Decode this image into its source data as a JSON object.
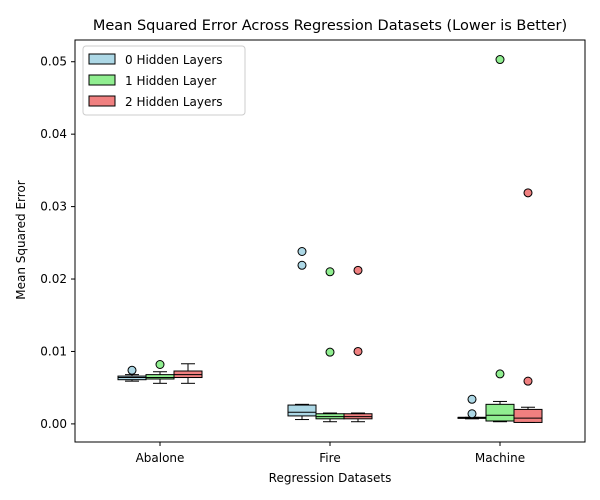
{
  "chart_data": {
    "type": "box",
    "title": "Mean Squared Error Across Regression Datasets (Lower is Better)",
    "xlabel": "Regression Datasets",
    "ylabel": "Mean Squared Error",
    "categories": [
      "Abalone",
      "Fire",
      "Machine"
    ],
    "ylim": [
      -0.0025,
      0.053
    ],
    "yticks": [
      0.0,
      0.01,
      0.02,
      0.03,
      0.04,
      0.05
    ],
    "ytick_labels": [
      "0.00",
      "0.01",
      "0.02",
      "0.03",
      "0.04",
      "0.05"
    ],
    "legend_position": "top-left",
    "series": [
      {
        "name": "0 Hidden Layers",
        "color": "#add8e6",
        "boxes": [
          {
            "whislo": 0.0059,
            "q1": 0.0061,
            "med": 0.0064,
            "q3": 0.0066,
            "whishi": 0.0068,
            "fliers": [
              0.0074
            ]
          },
          {
            "whislo": 0.0006,
            "q1": 0.0011,
            "med": 0.0016,
            "q3": 0.0026,
            "whishi": 0.0027,
            "fliers": [
              0.0219,
              0.0238
            ]
          },
          {
            "whislo": 0.0007,
            "q1": 0.0008,
            "med": 0.0009,
            "q3": 0.0009,
            "whishi": 0.0009,
            "fliers": [
              0.0014,
              0.0034
            ]
          }
        ]
      },
      {
        "name": "1 Hidden Layer",
        "color": "#90ee90",
        "boxes": [
          {
            "whislo": 0.0056,
            "q1": 0.0062,
            "med": 0.0064,
            "q3": 0.0068,
            "whishi": 0.0072,
            "fliers": [
              0.0082
            ]
          },
          {
            "whislo": 0.0003,
            "q1": 0.0007,
            "med": 0.001,
            "q3": 0.0014,
            "whishi": 0.0015,
            "fliers": [
              0.0099,
              0.021
            ]
          },
          {
            "whislo": 0.0003,
            "q1": 0.0004,
            "med": 0.0012,
            "q3": 0.0027,
            "whishi": 0.0031,
            "fliers": [
              0.0069,
              0.0503
            ]
          }
        ]
      },
      {
        "name": "2 Hidden Layers",
        "color": "#f08080",
        "boxes": [
          {
            "whislo": 0.0056,
            "q1": 0.0064,
            "med": 0.0068,
            "q3": 0.0073,
            "whishi": 0.0083,
            "fliers": []
          },
          {
            "whislo": 0.0003,
            "q1": 0.0007,
            "med": 0.001,
            "q3": 0.0014,
            "whishi": 0.0015,
            "fliers": [
              0.01,
              0.0212
            ]
          },
          {
            "whislo": 0.0002,
            "q1": 0.0002,
            "med": 0.0008,
            "q3": 0.002,
            "whishi": 0.0023,
            "fliers": [
              0.0059,
              0.0319
            ]
          }
        ]
      }
    ]
  }
}
